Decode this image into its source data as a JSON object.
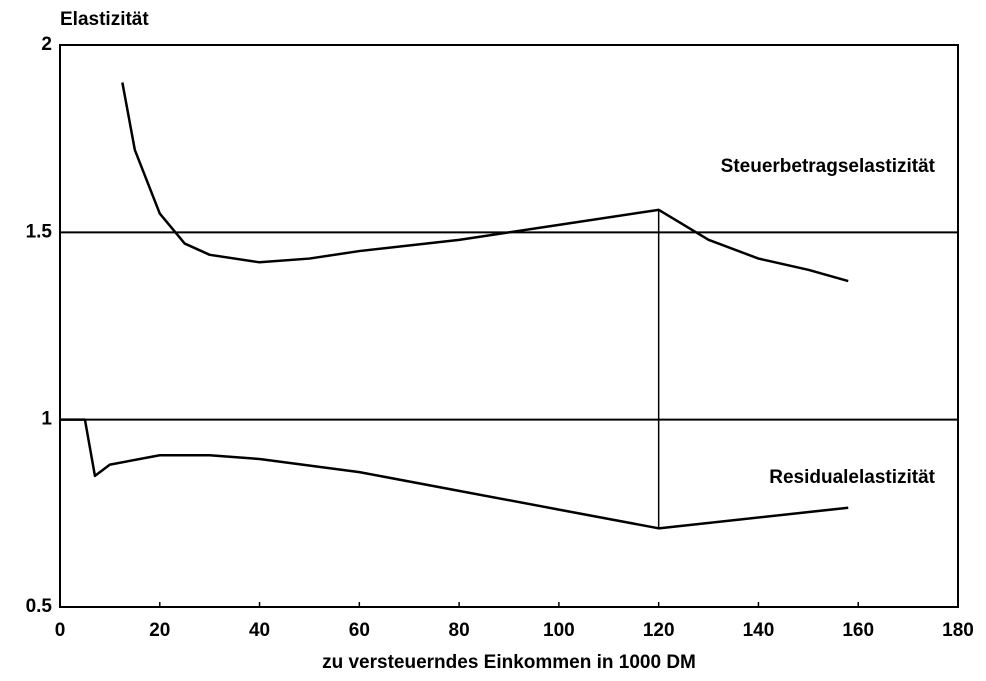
{
  "chart_data": {
    "type": "line",
    "ylabel": "Elastizität",
    "xlabel": "zu versteuerndes Einkommen in 1000 DM",
    "series": [
      {
        "name": "Steuerbetragselastizität",
        "color": "#000000",
        "x": [
          12.5,
          15,
          20,
          25,
          30,
          40,
          50,
          60,
          80,
          100,
          120,
          130,
          140,
          150,
          158
        ],
        "values": [
          1.9,
          1.72,
          1.55,
          1.47,
          1.44,
          1.42,
          1.43,
          1.45,
          1.48,
          1.52,
          1.56,
          1.48,
          1.43,
          1.4,
          1.37
        ]
      },
      {
        "name": "Residualelastizität",
        "color": "#000000",
        "x": [
          0,
          5,
          7,
          10,
          20,
          30,
          40,
          60,
          80,
          100,
          120,
          158
        ],
        "values": [
          1.0,
          1.0,
          0.85,
          0.88,
          0.905,
          0.905,
          0.895,
          0.86,
          0.81,
          0.76,
          0.71,
          0.765
        ]
      }
    ],
    "xlim": [
      0,
      180
    ],
    "xticks": [
      0,
      20,
      40,
      60,
      80,
      100,
      120,
      140,
      160,
      180
    ],
    "ylim": [
      0.5,
      2
    ],
    "yticks": [
      0.5,
      1,
      1.5,
      2
    ],
    "grid": true
  }
}
